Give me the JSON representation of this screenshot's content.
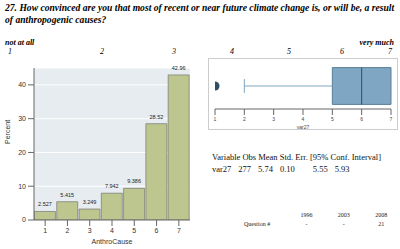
{
  "title": "27. How convinced are you that most of recent or near future climate change is, or will be, a result of anthropogenic causes?",
  "scale": {
    "low_label": "not at all",
    "high_label": "very much",
    "points": [
      "1",
      "2",
      "3",
      "4",
      "5",
      "6",
      "7"
    ]
  },
  "chart_data": [
    {
      "type": "bar",
      "categories": [
        "1",
        "2",
        "3",
        "4",
        "5",
        "6",
        "7"
      ],
      "values": [
        2.527,
        5.415,
        3.249,
        7.942,
        9.386,
        28.52,
        42.96
      ],
      "xlabel": "AnthroCause",
      "ylabel": "Percent",
      "ylim": [
        0,
        45
      ],
      "yticks": [
        0,
        10,
        20,
        30,
        40
      ],
      "color": "#bcc68e",
      "grid": true,
      "data_labels": true
    },
    {
      "type": "box",
      "xlabel": "var27",
      "xlim": [
        1,
        7
      ],
      "xticks": [
        1,
        2,
        3,
        4,
        5,
        6,
        7
      ],
      "whisker_low": 2,
      "q1": 5,
      "median": 6,
      "q3": 7,
      "whisker_high": 7,
      "outliers": [
        1
      ],
      "color": "#7fa6c2"
    }
  ],
  "stats_table": {
    "columns": [
      "Variable",
      "Obs",
      "Mean",
      "Std. Err.",
      "[95% Conf. Interval]"
    ],
    "rows": [
      [
        "var27",
        "277",
        "5.74",
        "0.10",
        "5.55",
        "5.93"
      ]
    ]
  },
  "year_table": {
    "columns": [
      "1996",
      "2003",
      "2008"
    ],
    "rows": [
      [
        "Question #",
        "-",
        "-",
        "21"
      ]
    ]
  }
}
